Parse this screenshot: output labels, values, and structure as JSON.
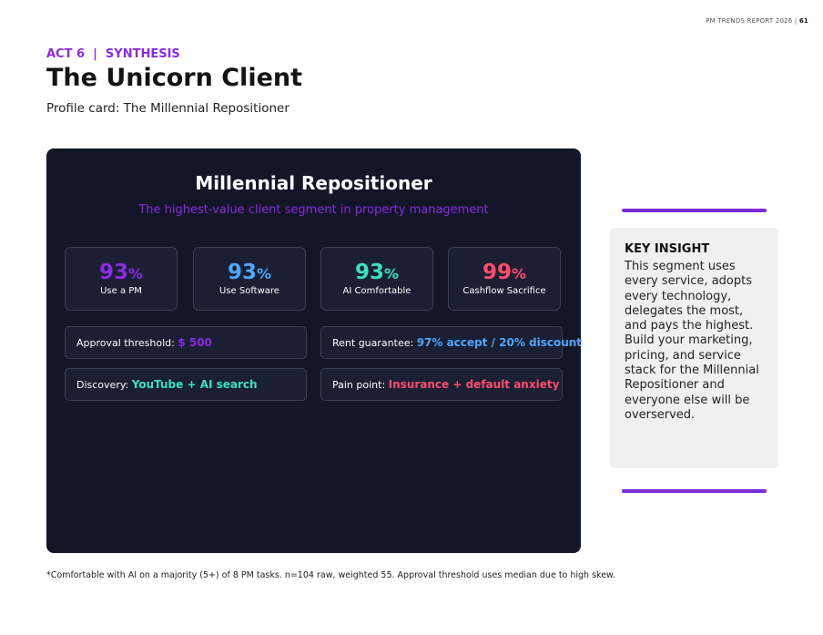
{
  "header": {
    "report": "PM TRENDS REPORT 2026",
    "separator": "|",
    "page": "61"
  },
  "eyebrow": {
    "act": "ACT 6",
    "separator": "|",
    "section": "SYNTHESIS"
  },
  "title": "The Unicorn Client",
  "subtitle": "Profile card: The Millennial Repositioner",
  "card": {
    "title": "Millennial Repositioner",
    "tagline": "The highest-value client segment in property management",
    "stats": [
      {
        "value": "93",
        "unit": "%",
        "label": "Use a PM"
      },
      {
        "value": "93",
        "unit": "%",
        "label": "Use Software"
      },
      {
        "value": "93",
        "unit": "%",
        "label": "AI Comfortable"
      },
      {
        "value": "99",
        "unit": "%",
        "label": "Cashflow Sacrifice"
      }
    ],
    "details": [
      {
        "label": "Approval threshold:",
        "value": "$ 500"
      },
      {
        "label": "Rent guarantee:",
        "value": "97% accept / 20% discount"
      },
      {
        "label": "Discovery:",
        "value": "YouTube + AI search"
      },
      {
        "label": "Pain point:",
        "value": "Insurance + default anxiety"
      }
    ]
  },
  "insight": {
    "title": "KEY INSIGHT",
    "body": "This segment uses every service, adopts every technology, delegates the most, and pays the highest. Build your marketing, pricing, and service stack for the Millennial Repositioner and everyone else will be overserved."
  },
  "footnote": "*Comfortable with AI on a majority (5+) of 8 PM tasks. n=104 raw, weighted 55. Approval threshold uses median due to high skew."
}
